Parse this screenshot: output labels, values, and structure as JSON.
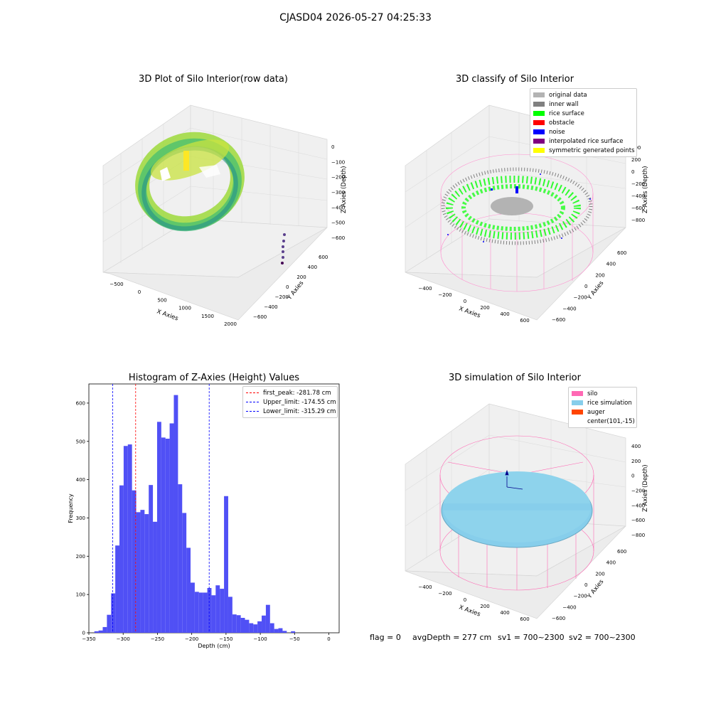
{
  "figure": {
    "suptitle": "CJASD04 2026-05-27 04:25:33",
    "footer": {
      "flag": "flag = 0",
      "avg_depth": "avgDepth = 277 cm",
      "sv1": "sv1 = 700~2300",
      "sv2": "sv2 = 700~2300"
    }
  },
  "panel_raw": {
    "title": "3D Plot of Silo Interior(row data)",
    "xlabel": "X Axies",
    "ylabel": "Y Axies",
    "zlabel": "Z Axies (Depth)",
    "x_ticks": [
      "−500",
      "0",
      "500",
      "1000",
      "1500",
      "2000"
    ],
    "y_ticks": [
      "600",
      "400",
      "200",
      "0",
      "−200",
      "−400",
      "−600"
    ],
    "z_ticks": [
      "0",
      "−100",
      "−200",
      "−300",
      "−400",
      "−500",
      "−600"
    ],
    "colormap": [
      "#fde725",
      "#5ec962",
      "#21918c",
      "#3b528b",
      "#440154"
    ]
  },
  "panel_classify": {
    "title": "3D classify of Silo Interior",
    "xlabel": "X Axies",
    "ylabel": "Y Axies",
    "zlabel": "Z Axies (Depth)",
    "x_ticks": [
      "−400",
      "−200",
      "0",
      "200",
      "400",
      "600"
    ],
    "y_ticks": [
      "600",
      "400",
      "200",
      "0",
      "−200",
      "−400",
      "−600"
    ],
    "z_ticks": [
      "400",
      "200",
      "0",
      "−200",
      "−400",
      "−600",
      "−800"
    ],
    "legend": [
      {
        "label": "original data",
        "color": "#b3b3b3"
      },
      {
        "label": "inner wall",
        "color": "#808080"
      },
      {
        "label": "rice surface",
        "color": "#00ff00"
      },
      {
        "label": "obstacle",
        "color": "#ff0000"
      },
      {
        "label": "noise",
        "color": "#0000ff"
      },
      {
        "label": "interpolated rice surface",
        "color": "#800080"
      },
      {
        "label": "symmetric generated points",
        "color": "#ffff00"
      }
    ]
  },
  "panel_sim": {
    "title": "3D simulation of Silo Interior",
    "xlabel": "X Axies",
    "ylabel": "Y Axies",
    "zlabel": "Z Axies (Depth)",
    "x_ticks": [
      "−400",
      "−200",
      "0",
      "200",
      "400",
      "600"
    ],
    "y_ticks": [
      "600",
      "400",
      "200",
      "0",
      "−200",
      "−400",
      "−600"
    ],
    "z_ticks": [
      "400",
      "200",
      "0",
      "−200",
      "−400",
      "−600",
      "−800"
    ],
    "legend": [
      {
        "label": "silo",
        "color": "#ff69b4"
      },
      {
        "label": "rice simulation",
        "color": "#87ceeb"
      },
      {
        "label": "auger",
        "color": "#ff4500"
      },
      {
        "label": "center(101,-15)",
        "color": ""
      }
    ]
  },
  "chart_data": {
    "type": "bar",
    "title": "Histogram of Z-Axies (Height) Values",
    "xlabel": "Depth (cm)",
    "ylabel": "Frequency",
    "xlim": [
      -350,
      15
    ],
    "ylim": [
      0,
      650
    ],
    "x_ticks": [
      -350,
      -300,
      -250,
      -200,
      -150,
      -100,
      -50,
      0
    ],
    "x_tick_labels": [
      "−350",
      "−300",
      "−250",
      "−200",
      "−150",
      "−100",
      "−50",
      "0"
    ],
    "y_ticks": [
      0,
      100,
      200,
      300,
      400,
      500,
      600
    ],
    "bin_start": -342,
    "bin_width": 6.1,
    "values": [
      4,
      6,
      15,
      47,
      103,
      228,
      385,
      488,
      492,
      372,
      315,
      321,
      310,
      386,
      290,
      551,
      510,
      507,
      547,
      621,
      388,
      313,
      222,
      131,
      107,
      105,
      105,
      117,
      98,
      124,
      115,
      357,
      94,
      48,
      46,
      39,
      34,
      25,
      22,
      30,
      45,
      73,
      25,
      10,
      12,
      5,
      0,
      4
    ],
    "bar_color": "#5050f5",
    "grid": false,
    "legend_position": "upper right",
    "vlines": [
      {
        "label": "first_peak: -281.78 cm",
        "x": -281.78,
        "color": "#ff0000"
      },
      {
        "label": "Upper_limit: -174.55 cm",
        "x": -174.55,
        "color": "#0000ff"
      },
      {
        "label": "Lower_limit: -315.29 cm",
        "x": -315.29,
        "color": "#0000ff"
      }
    ]
  }
}
